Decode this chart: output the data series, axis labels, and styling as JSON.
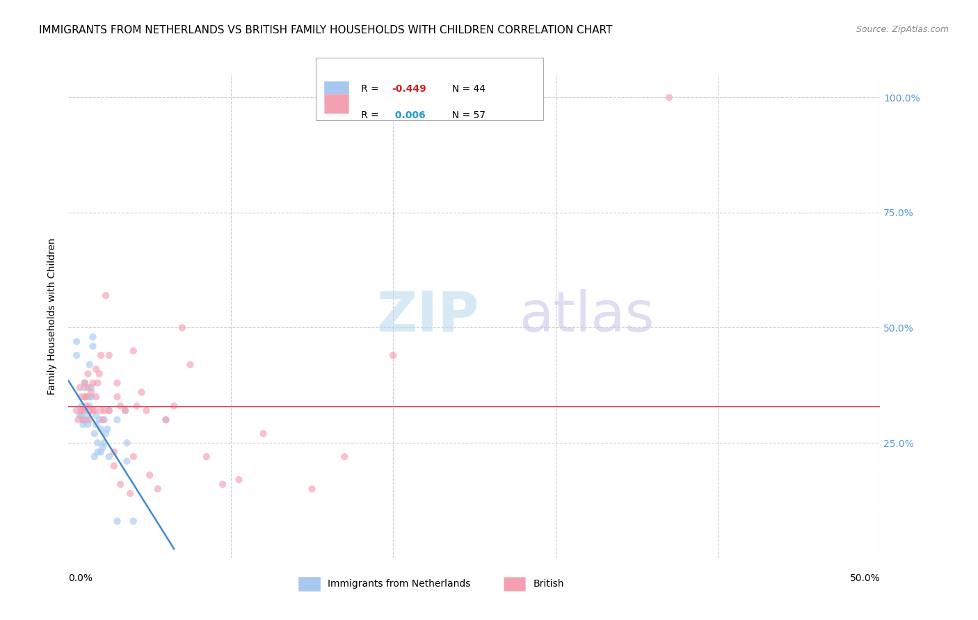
{
  "title": "IMMIGRANTS FROM NETHERLANDS VS BRITISH FAMILY HOUSEHOLDS WITH CHILDREN CORRELATION CHART",
  "source": "Source: ZipAtlas.com",
  "ylabel": "Family Households with Children",
  "xlim": [
    0,
    0.5
  ],
  "ylim": [
    0,
    1.05
  ],
  "blue_scatter_x": [
    0.005,
    0.005,
    0.007,
    0.008,
    0.008,
    0.009,
    0.009,
    0.01,
    0.01,
    0.01,
    0.011,
    0.011,
    0.012,
    0.012,
    0.013,
    0.013,
    0.013,
    0.014,
    0.014,
    0.015,
    0.015,
    0.016,
    0.016,
    0.017,
    0.017,
    0.018,
    0.018,
    0.019,
    0.02,
    0.02,
    0.021,
    0.022,
    0.022,
    0.023,
    0.024,
    0.025,
    0.025,
    0.03,
    0.03,
    0.035,
    0.036,
    0.036,
    0.04,
    0.06
  ],
  "blue_scatter_y": [
    0.44,
    0.47,
    0.31,
    0.31,
    0.33,
    0.29,
    0.3,
    0.32,
    0.37,
    0.38,
    0.3,
    0.35,
    0.29,
    0.31,
    0.33,
    0.35,
    0.42,
    0.35,
    0.37,
    0.46,
    0.48,
    0.22,
    0.27,
    0.29,
    0.31,
    0.23,
    0.25,
    0.3,
    0.23,
    0.28,
    0.24,
    0.25,
    0.3,
    0.27,
    0.28,
    0.22,
    0.32,
    0.3,
    0.08,
    0.32,
    0.21,
    0.25,
    0.08,
    0.3
  ],
  "pink_scatter_x": [
    0.005,
    0.006,
    0.007,
    0.008,
    0.008,
    0.009,
    0.009,
    0.01,
    0.01,
    0.011,
    0.011,
    0.012,
    0.012,
    0.013,
    0.013,
    0.014,
    0.015,
    0.015,
    0.016,
    0.017,
    0.017,
    0.018,
    0.019,
    0.02,
    0.02,
    0.021,
    0.022,
    0.023,
    0.025,
    0.025,
    0.028,
    0.028,
    0.03,
    0.03,
    0.032,
    0.032,
    0.035,
    0.038,
    0.04,
    0.04,
    0.042,
    0.045,
    0.048,
    0.05,
    0.055,
    0.06,
    0.065,
    0.07,
    0.075,
    0.085,
    0.095,
    0.105,
    0.12,
    0.15,
    0.17,
    0.2,
    0.37
  ],
  "pink_scatter_y": [
    0.32,
    0.3,
    0.37,
    0.32,
    0.35,
    0.3,
    0.32,
    0.35,
    0.38,
    0.33,
    0.35,
    0.37,
    0.4,
    0.3,
    0.32,
    0.36,
    0.32,
    0.38,
    0.32,
    0.35,
    0.41,
    0.38,
    0.4,
    0.32,
    0.44,
    0.3,
    0.32,
    0.57,
    0.32,
    0.44,
    0.2,
    0.23,
    0.35,
    0.38,
    0.33,
    0.16,
    0.32,
    0.14,
    0.45,
    0.22,
    0.33,
    0.36,
    0.32,
    0.18,
    0.15,
    0.3,
    0.33,
    0.5,
    0.42,
    0.22,
    0.16,
    0.17,
    0.27,
    0.15,
    0.22,
    0.44,
    1.0
  ],
  "blue_line_x": [
    0.0,
    0.065
  ],
  "blue_line_y": [
    0.385,
    0.02
  ],
  "pink_line_y": 0.328,
  "scatter_size": 55,
  "scatter_alpha": 0.65,
  "blue_color": "#a8c8f0",
  "pink_color": "#f5a0b0",
  "blue_line_color": "#4488cc",
  "pink_line_color": "#e05575",
  "grid_color": "#cccccc",
  "title_fontsize": 11,
  "axis_label_fontsize": 10,
  "tick_fontsize": 10,
  "right_tick_color": "#5599dd",
  "legend_r1": "R = -0.449",
  "legend_n1": "N = 44",
  "legend_r2": "R =  0.006",
  "legend_n2": "N = 57",
  "legend_r1_color": "#cc2222",
  "legend_r2_color": "#22aacc",
  "watermark": "ZIPatlas",
  "watermark_zip_color": "#c5dff0",
  "watermark_atlas_color": "#d0c8e8"
}
